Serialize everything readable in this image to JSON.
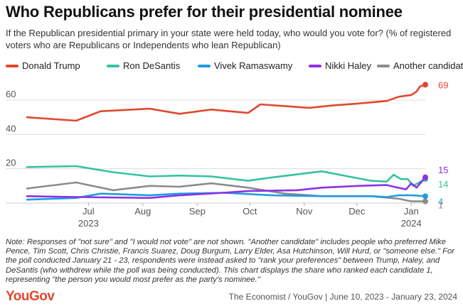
{
  "header": {
    "title": "Who Republicans prefer for their presidential nominee",
    "subtitle": "If the Republican presidential primary in your state were held today, who would you vote for? (% of registered voters who are Republicans or Independents who lean Republican)"
  },
  "footer": {
    "note": "Note: Responses of \"not sure\" and \"I would not vote\" are not shown. \"Another candidate\" includes people who preferred Mike Pence, Tim Scott, Chris Christie, Francis Suarez, Doug Burgum, Larry Elder, Asa Hutchinson, Will Hurd, or \"someone else.\" For the poll conducted January 21 - 23, respondents were instead asked to \"rank your preferences\" between Trump, Haley, and DeSantis (who withdrew while the poll was being conducted). This chart displays the share who ranked each candidate 1, representing \"the person you would most prefer as the party's nominee.\"",
    "logo": "YouGov",
    "source": "The Economist / YouGov | June 10, 2023 - January 23, 2024"
  },
  "chart_data": {
    "type": "line",
    "x_start": "2023-06-10",
    "x_end": "2024-01-23",
    "ylim": [
      0,
      72
    ],
    "y_ticks": [
      20,
      40,
      60
    ],
    "grid": true,
    "legend_position": "top",
    "x_ticks": [
      {
        "date": "2023-07-15",
        "label": "Jul",
        "sublabel": "2023"
      },
      {
        "date": "2023-08-15",
        "label": "Aug",
        "sublabel": ""
      },
      {
        "date": "2023-09-15",
        "label": "Sep",
        "sublabel": ""
      },
      {
        "date": "2023-10-15",
        "label": "Oct",
        "sublabel": ""
      },
      {
        "date": "2023-11-15",
        "label": "Nov",
        "sublabel": ""
      },
      {
        "date": "2023-12-15",
        "label": "Dec",
        "sublabel": ""
      },
      {
        "date": "2024-01-15",
        "label": "Jan",
        "sublabel": "2024"
      }
    ],
    "series": [
      {
        "name": "Donald Trump",
        "color": "#e3472e",
        "end_label": "69",
        "points": [
          [
            "2023-06-10",
            50
          ],
          [
            "2023-07-08",
            48
          ],
          [
            "2023-07-22",
            53.5
          ],
          [
            "2023-08-19",
            55
          ],
          [
            "2023-09-05",
            52
          ],
          [
            "2023-09-23",
            54.5
          ],
          [
            "2023-10-14",
            52.5
          ],
          [
            "2023-10-21",
            57.5
          ],
          [
            "2023-11-18",
            55.5
          ],
          [
            "2023-12-02",
            57
          ],
          [
            "2023-12-16",
            58
          ],
          [
            "2024-01-01",
            59.5
          ],
          [
            "2024-01-08",
            62
          ],
          [
            "2024-01-15",
            63
          ],
          [
            "2024-01-18",
            65
          ],
          [
            "2024-01-20",
            68
          ],
          [
            "2024-01-23",
            69
          ]
        ]
      },
      {
        "name": "Ron DeSantis",
        "color": "#35c2a0",
        "end_label": "14",
        "points": [
          [
            "2023-06-10",
            21
          ],
          [
            "2023-07-08",
            21.5
          ],
          [
            "2023-07-29",
            18
          ],
          [
            "2023-08-19",
            15.5
          ],
          [
            "2023-09-05",
            16
          ],
          [
            "2023-09-23",
            15.5
          ],
          [
            "2023-10-14",
            13
          ],
          [
            "2023-10-28",
            15
          ],
          [
            "2023-11-25",
            18.5
          ],
          [
            "2023-12-23",
            13
          ],
          [
            "2024-01-01",
            12.5
          ],
          [
            "2024-01-05",
            16.5
          ],
          [
            "2024-01-09",
            14
          ],
          [
            "2024-01-13",
            14
          ],
          [
            "2024-01-16",
            10
          ],
          [
            "2024-01-23",
            14
          ]
        ]
      },
      {
        "name": "Vivek Ramaswamy",
        "color": "#1e9de0",
        "end_label": "4",
        "points": [
          [
            "2023-06-10",
            2
          ],
          [
            "2023-07-08",
            3
          ],
          [
            "2023-07-22",
            5.5
          ],
          [
            "2023-08-19",
            4.5
          ],
          [
            "2023-09-05",
            5.5
          ],
          [
            "2023-09-30",
            6
          ],
          [
            "2023-10-28",
            4.5
          ],
          [
            "2023-11-25",
            4
          ],
          [
            "2023-12-23",
            4
          ],
          [
            "2024-01-01",
            3.5
          ],
          [
            "2024-01-08",
            4.5
          ],
          [
            "2024-01-15",
            4.5
          ],
          [
            "2024-01-23",
            4
          ]
        ]
      },
      {
        "name": "Nikki Haley",
        "color": "#8d32e3",
        "end_label": "15",
        "points": [
          [
            "2023-06-10",
            4
          ],
          [
            "2023-07-08",
            3.5
          ],
          [
            "2023-08-19",
            3
          ],
          [
            "2023-09-05",
            4.5
          ],
          [
            "2023-09-30",
            6
          ],
          [
            "2023-10-14",
            7
          ],
          [
            "2023-11-11",
            7.5
          ],
          [
            "2023-11-25",
            9
          ],
          [
            "2023-12-16",
            10
          ],
          [
            "2024-01-01",
            10.5
          ],
          [
            "2024-01-05",
            9.5
          ],
          [
            "2024-01-12",
            8
          ],
          [
            "2024-01-15",
            11.5
          ],
          [
            "2024-01-18",
            9
          ],
          [
            "2024-01-23",
            15
          ]
        ]
      },
      {
        "name": "Another candidate",
        "color": "#8c8c8c",
        "end_label": "1",
        "points": [
          [
            "2023-06-10",
            8.5
          ],
          [
            "2023-07-08",
            12
          ],
          [
            "2023-07-29",
            7.5
          ],
          [
            "2023-08-19",
            10
          ],
          [
            "2023-09-05",
            9.5
          ],
          [
            "2023-09-23",
            11.5
          ],
          [
            "2023-10-14",
            9
          ],
          [
            "2023-11-04",
            5.5
          ],
          [
            "2023-11-25",
            4
          ],
          [
            "2023-12-23",
            4
          ],
          [
            "2024-01-08",
            2.5
          ],
          [
            "2024-01-15",
            1
          ],
          [
            "2024-01-23",
            1
          ]
        ]
      }
    ]
  }
}
